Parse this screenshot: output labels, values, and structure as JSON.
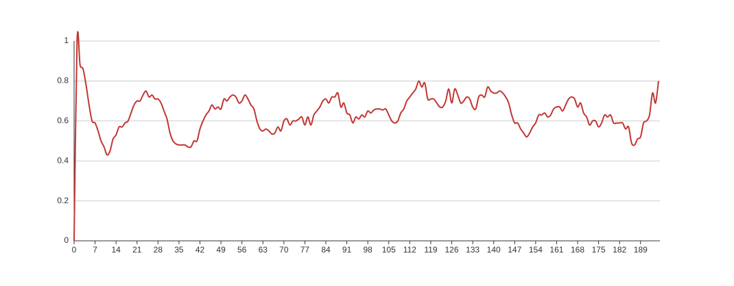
{
  "chart_data": {
    "type": "line",
    "color": "#c23531",
    "grid": true,
    "smooth": true,
    "ylim": [
      0,
      1
    ],
    "yticks": [
      0,
      0.2,
      0.4,
      0.6,
      0.8,
      1
    ],
    "categories": [
      0,
      null,
      null,
      null,
      null,
      null,
      null,
      7,
      null,
      null,
      null,
      null,
      null,
      null,
      14,
      null,
      null,
      null,
      null,
      null,
      null,
      21,
      null,
      null,
      null,
      null,
      null,
      null,
      28,
      null,
      null,
      null,
      null,
      null,
      null,
      35,
      null,
      null,
      null,
      null,
      null,
      null,
      42,
      null,
      null,
      null,
      null,
      null,
      null,
      49,
      null,
      null,
      null,
      null,
      null,
      null,
      56,
      null,
      null,
      null,
      null,
      null,
      null,
      63,
      null,
      null,
      null,
      null,
      null,
      null,
      70,
      null,
      null,
      null,
      null,
      null,
      null,
      77,
      null,
      null,
      null,
      null,
      null,
      null,
      84,
      null,
      null,
      null,
      null,
      null,
      null,
      91,
      null,
      null,
      null,
      null,
      null,
      null,
      98,
      null,
      null,
      null,
      null,
      null,
      null,
      105,
      null,
      null,
      null,
      null,
      null,
      null,
      112,
      null,
      null,
      null,
      null,
      null,
      null,
      119,
      null,
      null,
      null,
      null,
      null,
      null,
      126,
      null,
      null,
      null,
      null,
      null,
      null,
      133,
      null,
      null,
      null,
      null,
      null,
      null,
      140,
      null,
      null,
      null,
      null,
      null,
      null,
      147,
      null,
      null,
      null,
      null,
      null,
      null,
      154,
      null,
      null,
      null,
      null,
      null,
      null,
      161,
      null,
      null,
      null,
      null,
      null,
      null,
      168,
      null,
      null,
      null,
      null,
      null,
      null,
      175,
      null,
      null,
      null,
      null,
      null,
      null,
      182,
      null,
      null,
      null,
      null,
      null,
      null,
      189,
      null,
      null,
      null,
      null,
      null,
      null
    ],
    "values": [
      0,
      1.0,
      0.88,
      0.86,
      0.78,
      0.68,
      0.6,
      0.59,
      0.55,
      0.5,
      0.47,
      0.43,
      0.45,
      0.51,
      0.53,
      0.57,
      0.57,
      0.59,
      0.6,
      0.64,
      0.68,
      0.7,
      0.7,
      0.73,
      0.75,
      0.72,
      0.73,
      0.71,
      0.71,
      0.69,
      0.65,
      0.61,
      0.54,
      0.5,
      0.485,
      0.48,
      0.48,
      0.48,
      0.47,
      0.47,
      0.5,
      0.5,
      0.56,
      0.6,
      0.63,
      0.65,
      0.68,
      0.66,
      0.67,
      0.66,
      0.71,
      0.7,
      0.72,
      0.73,
      0.72,
      0.69,
      0.7,
      0.73,
      0.71,
      0.68,
      0.66,
      0.6,
      0.56,
      0.55,
      0.56,
      0.55,
      0.535,
      0.54,
      0.57,
      0.55,
      0.6,
      0.61,
      0.58,
      0.6,
      0.6,
      0.61,
      0.62,
      0.58,
      0.62,
      0.58,
      0.63,
      0.65,
      0.67,
      0.7,
      0.71,
      0.69,
      0.72,
      0.72,
      0.74,
      0.67,
      0.69,
      0.64,
      0.63,
      0.59,
      0.62,
      0.61,
      0.63,
      0.62,
      0.65,
      0.64,
      0.655,
      0.66,
      0.66,
      0.655,
      0.66,
      0.63,
      0.6,
      0.59,
      0.6,
      0.64,
      0.66,
      0.7,
      0.72,
      0.74,
      0.76,
      0.8,
      0.77,
      0.79,
      0.71,
      0.71,
      0.71,
      0.69,
      0.67,
      0.67,
      0.7,
      0.76,
      0.69,
      0.76,
      0.73,
      0.69,
      0.7,
      0.72,
      0.71,
      0.67,
      0.66,
      0.72,
      0.73,
      0.72,
      0.77,
      0.75,
      0.74,
      0.74,
      0.75,
      0.74,
      0.72,
      0.69,
      0.63,
      0.59,
      0.59,
      0.56,
      0.54,
      0.52,
      0.54,
      0.57,
      0.59,
      0.63,
      0.63,
      0.64,
      0.62,
      0.63,
      0.66,
      0.67,
      0.67,
      0.65,
      0.68,
      0.71,
      0.72,
      0.71,
      0.67,
      0.69,
      0.64,
      0.62,
      0.58,
      0.6,
      0.6,
      0.57,
      0.59,
      0.63,
      0.62,
      0.63,
      0.59,
      0.59,
      0.59,
      0.59,
      0.56,
      0.57,
      0.49,
      0.48,
      0.51,
      0.52,
      0.59,
      0.6,
      0.63,
      0.74,
      0.69,
      0.8
    ]
  }
}
